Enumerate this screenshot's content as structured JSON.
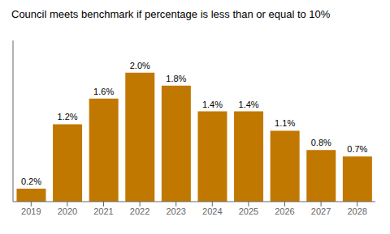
{
  "chart_data": {
    "type": "bar",
    "title": "Council meets benchmark if percentage is less than or equal to 10%",
    "categories": [
      "2019",
      "2020",
      "2021",
      "2022",
      "2023",
      "2024",
      "2025",
      "2026",
      "2027",
      "2028"
    ],
    "values": [
      0.2,
      1.2,
      1.6,
      2.0,
      1.8,
      1.4,
      1.4,
      1.1,
      0.8,
      0.7
    ],
    "value_labels": [
      "0.2%",
      "1.2%",
      "1.6%",
      "2.0%",
      "1.8%",
      "1.4%",
      "1.4%",
      "1.1%",
      "0.8%",
      "0.7%"
    ],
    "color": "#C17800",
    "ylim": [
      0,
      2.5
    ],
    "data_labels": true,
    "tick_labels": "x",
    "grid": false
  }
}
